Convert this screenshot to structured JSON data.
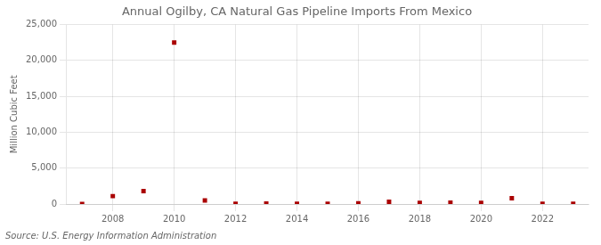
{
  "chart_data": {
    "type": "scatter",
    "title": "Annual Ogilby, CA Natural Gas Pipeline Imports From Mexico",
    "ylabel": "Million Cubic Feet",
    "source": "Source: U.S. Energy Information Administration",
    "x": [
      2007,
      2008,
      2009,
      2010,
      2011,
      2012,
      2013,
      2014,
      2015,
      2016,
      2017,
      2018,
      2019,
      2020,
      2021,
      2022,
      2023
    ],
    "values": [
      0,
      1100,
      1800,
      22500,
      500,
      30,
      50,
      20,
      30,
      100,
      300,
      150,
      180,
      150,
      800,
      30,
      30
    ],
    "color": "#aa0000",
    "marker": "square",
    "xlim": [
      2006.5,
      2023.5
    ],
    "xticks": [
      2008,
      2010,
      2012,
      2014,
      2016,
      2018,
      2020,
      2022
    ],
    "ylim": [
      0,
      25000
    ],
    "yticks": [
      0,
      {
        "value": 5000,
        "label": "5,000"
      },
      {
        "value": 10000,
        "label": "10,000"
      },
      {
        "value": 15000,
        "label": "15,000"
      },
      {
        "value": 20000,
        "label": "20,000"
      },
      {
        "value": 25000,
        "label": "25,000"
      }
    ],
    "grid": true
  }
}
